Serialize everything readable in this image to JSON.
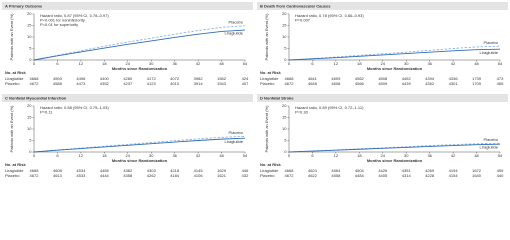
{
  "chart_data": [
    {
      "type": "line",
      "title": "A  Primary Outcome",
      "xlabel": "Months since Randomization",
      "ylabel": "Patients with an Event (%)",
      "x": [
        0,
        6,
        12,
        18,
        24,
        30,
        36,
        42,
        48,
        54
      ],
      "xlim": [
        0,
        54
      ],
      "xticks": [
        0,
        6,
        12,
        18,
        24,
        30,
        36,
        42,
        48,
        54
      ],
      "ylim": [
        0,
        20
      ],
      "yticks": [
        0,
        5,
        10,
        15,
        20
      ],
      "annotations": [
        "Hazard ratio, 0.87 (95% CI, 0.78–0.97)",
        "P<0.001 for noninferiority",
        "P=0.01 for superiority"
      ],
      "series": [
        {
          "name": "Placebo",
          "color": "#8fb4dc",
          "dashed": true,
          "values": [
            0,
            2.0,
            4.0,
            6.0,
            7.8,
            9.5,
            11.2,
            12.8,
            14.2,
            14.9
          ]
        },
        {
          "name": "Liraglutide",
          "color": "#2f6db5",
          "dashed": false,
          "values": [
            0,
            1.8,
            3.5,
            5.2,
            6.8,
            8.3,
            9.8,
            11.2,
            12.4,
            13.0
          ]
        }
      ],
      "risk_table": {
        "title": "No. at Risk",
        "rows": [
          {
            "name": "Liraglutide",
            "values": [
              4668,
              4593,
              4496,
              4400,
              4280,
              4172,
              4072,
              3982,
              1562,
              424
            ]
          },
          {
            "name": "Placebo",
            "values": [
              4672,
              4588,
              4473,
              4352,
              4237,
              4123,
              4010,
              3914,
              1543,
              407
            ]
          }
        ]
      }
    },
    {
      "type": "line",
      "title": "B  Death from Cardiovascular Causes",
      "xlabel": "Months since Randomization",
      "ylabel": "Patients with an Event (%)",
      "x": [
        0,
        6,
        12,
        18,
        24,
        30,
        36,
        42,
        48,
        54
      ],
      "xlim": [
        0,
        54
      ],
      "xticks": [
        0,
        6,
        12,
        18,
        24,
        30,
        36,
        42,
        48,
        54
      ],
      "ylim": [
        0,
        20
      ],
      "yticks": [
        0,
        5,
        10,
        15,
        20
      ],
      "annotations": [
        "Hazard ratio, 0.78 (95% CI, 0.66–0.93)",
        "P=0.007"
      ],
      "series": [
        {
          "name": "Placebo",
          "color": "#8fb4dc",
          "dashed": true,
          "values": [
            0,
            0.6,
            1.3,
            2.0,
            2.7,
            3.4,
            4.2,
            5.0,
            5.7,
            6.0
          ]
        },
        {
          "name": "Liraglutide",
          "color": "#2f6db5",
          "dashed": false,
          "values": [
            0,
            0.5,
            1.0,
            1.6,
            2.2,
            2.8,
            3.4,
            4.0,
            4.5,
            4.7
          ]
        }
      ],
      "risk_table": {
        "title": "No. at Risk",
        "rows": [
          {
            "name": "Liraglutide",
            "values": [
              4668,
              4641,
              4609,
              4562,
              4508,
              4452,
              4394,
              4336,
              1739,
              473
            ]
          },
          {
            "name": "Placebo",
            "values": [
              4672,
              4648,
              4608,
              4566,
              4509,
              4439,
              4362,
              4301,
              1709,
              465
            ]
          }
        ]
      }
    },
    {
      "type": "line",
      "title": "C  Nonfatal Myocardial Infarction",
      "xlabel": "Months since Randomization",
      "ylabel": "Patients with an Event (%)",
      "x": [
        0,
        6,
        12,
        18,
        24,
        30,
        36,
        42,
        48,
        54
      ],
      "xlim": [
        0,
        54
      ],
      "xticks": [
        0,
        6,
        12,
        18,
        24,
        30,
        36,
        42,
        48,
        54
      ],
      "ylim": [
        0,
        20
      ],
      "yticks": [
        0,
        5,
        10,
        15,
        20
      ],
      "annotations": [
        "Hazard ratio, 0.88 (95% CI, 0.75–1.03)",
        "P=0.11"
      ],
      "series": [
        {
          "name": "Placebo",
          "color": "#8fb4dc",
          "dashed": true,
          "values": [
            0,
            0.9,
            1.7,
            2.5,
            3.3,
            4.1,
            4.9,
            5.7,
            6.4,
            6.8
          ]
        },
        {
          "name": "Liraglutide",
          "color": "#2f6db5",
          "dashed": false,
          "values": [
            0,
            0.8,
            1.5,
            2.2,
            2.9,
            3.6,
            4.3,
            5.0,
            5.6,
            6.0
          ]
        }
      ],
      "risk_table": {
        "title": "No. at Risk",
        "rows": [
          {
            "name": "Liraglutide",
            "values": [
              4668,
              4608,
              4534,
              4465,
              4382,
              4303,
              4218,
              4145,
              1629,
              446
            ]
          },
          {
            "name": "Placebo",
            "values": [
              4672,
              4613,
              4533,
              4444,
              4358,
              4262,
              4184,
              4106,
              1621,
              432
            ]
          }
        ]
      }
    },
    {
      "type": "line",
      "title": "D  Nonfatal Stroke",
      "xlabel": "Months since Randomization",
      "ylabel": "Patients with an Event (%)",
      "x": [
        0,
        6,
        12,
        18,
        24,
        30,
        36,
        42,
        48,
        54
      ],
      "xlim": [
        0,
        54
      ],
      "xticks": [
        0,
        6,
        12,
        18,
        24,
        30,
        36,
        42,
        48,
        54
      ],
      "ylim": [
        0,
        20
      ],
      "yticks": [
        0,
        5,
        10,
        15,
        20
      ],
      "annotations": [
        "Hazard ratio, 0.89 (95% CI, 0.72–1.11)",
        "P=0.30"
      ],
      "series": [
        {
          "name": "Placebo",
          "color": "#8fb4dc",
          "dashed": true,
          "values": [
            0,
            0.4,
            0.9,
            1.4,
            1.8,
            2.3,
            2.8,
            3.2,
            3.6,
            3.8
          ]
        },
        {
          "name": "Liraglutide",
          "color": "#2f6db5",
          "dashed": false,
          "values": [
            0,
            0.4,
            0.8,
            1.2,
            1.6,
            2.0,
            2.4,
            2.8,
            3.2,
            3.4
          ]
        }
      ],
      "risk_table": {
        "title": "No. at Risk",
        "rows": [
          {
            "name": "Liraglutide",
            "values": [
              4668,
              4624,
              4564,
              4504,
              4426,
              4351,
              4269,
              4194,
              1672,
              459
            ]
          },
          {
            "name": "Placebo",
            "values": [
              4672,
              4622,
              4558,
              4484,
              4405,
              4314,
              4228,
              4154,
              1640,
              440
            ]
          }
        ]
      }
    }
  ]
}
